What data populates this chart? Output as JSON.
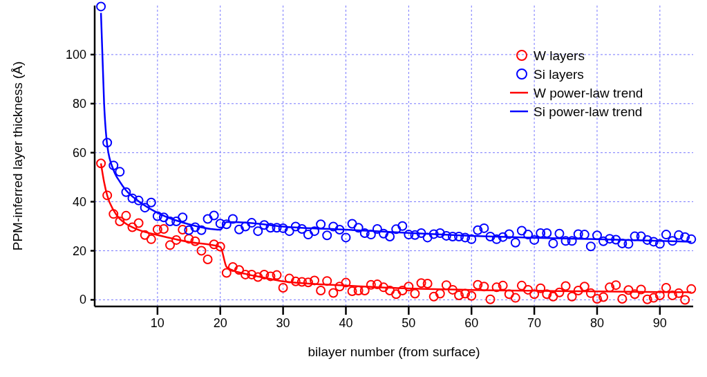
{
  "chart_data": {
    "type": "scatter",
    "xlabel": "bilayer number (from surface)",
    "ylabel": "PPM-inferred layer thickness (Å)",
    "xlim": [
      0,
      95.3
    ],
    "ylim": [
      -2.7,
      120
    ],
    "xticks": [
      10,
      20,
      30,
      40,
      50,
      60,
      70,
      80,
      90
    ],
    "yticks": [
      0,
      20,
      40,
      60,
      80,
      100
    ],
    "grid": true,
    "legend": "top right",
    "x": [
      1,
      2,
      3,
      4,
      5,
      6,
      7,
      8,
      9,
      10,
      11,
      12,
      13,
      14,
      15,
      16,
      17,
      18,
      19,
      20,
      21,
      22,
      23,
      24,
      25,
      26,
      27,
      28,
      29,
      30,
      31,
      32,
      33,
      34,
      35,
      36,
      37,
      38,
      39,
      40,
      41,
      42,
      43,
      44,
      45,
      46,
      47,
      48,
      49,
      50,
      51,
      52,
      53,
      54,
      55,
      56,
      57,
      58,
      59,
      60,
      61,
      62,
      63,
      64,
      65,
      66,
      67,
      68,
      69,
      70,
      71,
      72,
      73,
      74,
      75,
      76,
      77,
      78,
      79,
      80,
      81,
      82,
      83,
      84,
      85,
      86,
      87,
      88,
      89,
      90,
      91,
      92,
      93,
      94,
      95
    ],
    "series": [
      {
        "name": "W layers",
        "marker": "circle",
        "color": "#ff0000",
        "values": [
          55.6,
          42.6,
          35.0,
          32.0,
          34.3,
          29.6,
          31.3,
          26.4,
          24.7,
          28.7,
          28.9,
          22.3,
          24.4,
          28.6,
          24.9,
          23.9,
          20.0,
          16.5,
          22.6,
          21.7,
          11.0,
          13.4,
          12.2,
          10.3,
          10.3,
          9.3,
          10.3,
          9.6,
          10.1,
          4.9,
          8.7,
          7.5,
          7.3,
          7.1,
          7.9,
          3.8,
          7.7,
          2.8,
          5.4,
          7.0,
          3.5,
          3.8,
          3.8,
          6.1,
          6.3,
          5.1,
          3.8,
          2.3,
          3.8,
          5.4,
          2.5,
          6.8,
          6.6,
          1.3,
          2.5,
          6.0,
          4.1,
          1.8,
          2.5,
          1.6,
          6.1,
          5.4,
          0.2,
          5.1,
          5.8,
          2.3,
          0.8,
          5.8,
          4.1,
          2.3,
          4.7,
          2.3,
          1.3,
          3.0,
          5.6,
          1.3,
          3.8,
          5.4,
          2.7,
          0.4,
          1.1,
          5.1,
          6.0,
          0.4,
          4.0,
          2.3,
          4.2,
          0.2,
          0.8,
          1.8,
          4.9,
          1.8,
          2.7,
          0.0,
          4.4
        ]
      },
      {
        "name": "Si layers",
        "marker": "circle",
        "color": "#0000ff",
        "values": [
          119.6,
          64.1,
          54.8,
          52.2,
          43.9,
          41.4,
          40.5,
          37.6,
          39.7,
          34.1,
          33.6,
          32.0,
          32.0,
          33.6,
          28.4,
          29.6,
          28.4,
          33.0,
          34.4,
          31.1,
          30.8,
          33.0,
          28.7,
          29.9,
          31.4,
          28.0,
          30.5,
          29.4,
          29.4,
          29.2,
          28.0,
          29.9,
          28.9,
          26.6,
          28.0,
          30.8,
          26.3,
          29.9,
          28.6,
          25.4,
          31.0,
          29.4,
          27.2,
          26.6,
          28.9,
          27.0,
          25.8,
          28.8,
          30.1,
          26.6,
          26.4,
          27.2,
          25.4,
          26.8,
          27.2,
          26.1,
          25.8,
          25.8,
          25.4,
          24.7,
          28.4,
          29.2,
          25.8,
          24.7,
          25.6,
          26.8,
          23.3,
          28.2,
          26.6,
          24.4,
          27.2,
          27.2,
          23.0,
          27.0,
          24.0,
          24.0,
          26.8,
          26.6,
          21.8,
          26.3,
          23.9,
          24.9,
          24.5,
          23.0,
          22.8,
          25.9,
          25.9,
          24.4,
          23.7,
          22.8,
          26.6,
          24.0,
          26.4,
          25.6,
          24.7
        ]
      },
      {
        "name": "W power-law trend",
        "type": "line",
        "marker": "none",
        "line_style": "solid",
        "color": "#ff0000",
        "x": [
          1,
          1.5,
          2,
          3,
          4,
          5,
          7,
          10,
          15,
          20,
          21,
          22,
          24,
          27,
          30,
          35,
          40,
          50,
          60,
          70,
          80,
          95
        ],
        "values": [
          55.6,
          48,
          42.5,
          36.5,
          33,
          31,
          28.5,
          26.4,
          23.6,
          21.6,
          13.4,
          12.0,
          10.6,
          9.0,
          7.5,
          6.5,
          5.8,
          4.6,
          4.0,
          3.7,
          3.4,
          3.1
        ]
      },
      {
        "name": "Si power-law trend",
        "type": "line",
        "marker": "none",
        "line_style": "solid",
        "color": "#0000ff",
        "x": [
          1,
          1.5,
          2,
          3,
          4,
          5,
          7,
          10,
          15,
          20,
          21,
          25,
          30,
          40,
          50,
          60,
          70,
          80,
          95
        ],
        "values": [
          117,
          80,
          63,
          52.9,
          48.2,
          44.6,
          40.2,
          35.5,
          30.8,
          28.6,
          31.7,
          31.3,
          29.9,
          28.6,
          27.3,
          26.1,
          25.3,
          24.7,
          23.7
        ]
      }
    ]
  }
}
